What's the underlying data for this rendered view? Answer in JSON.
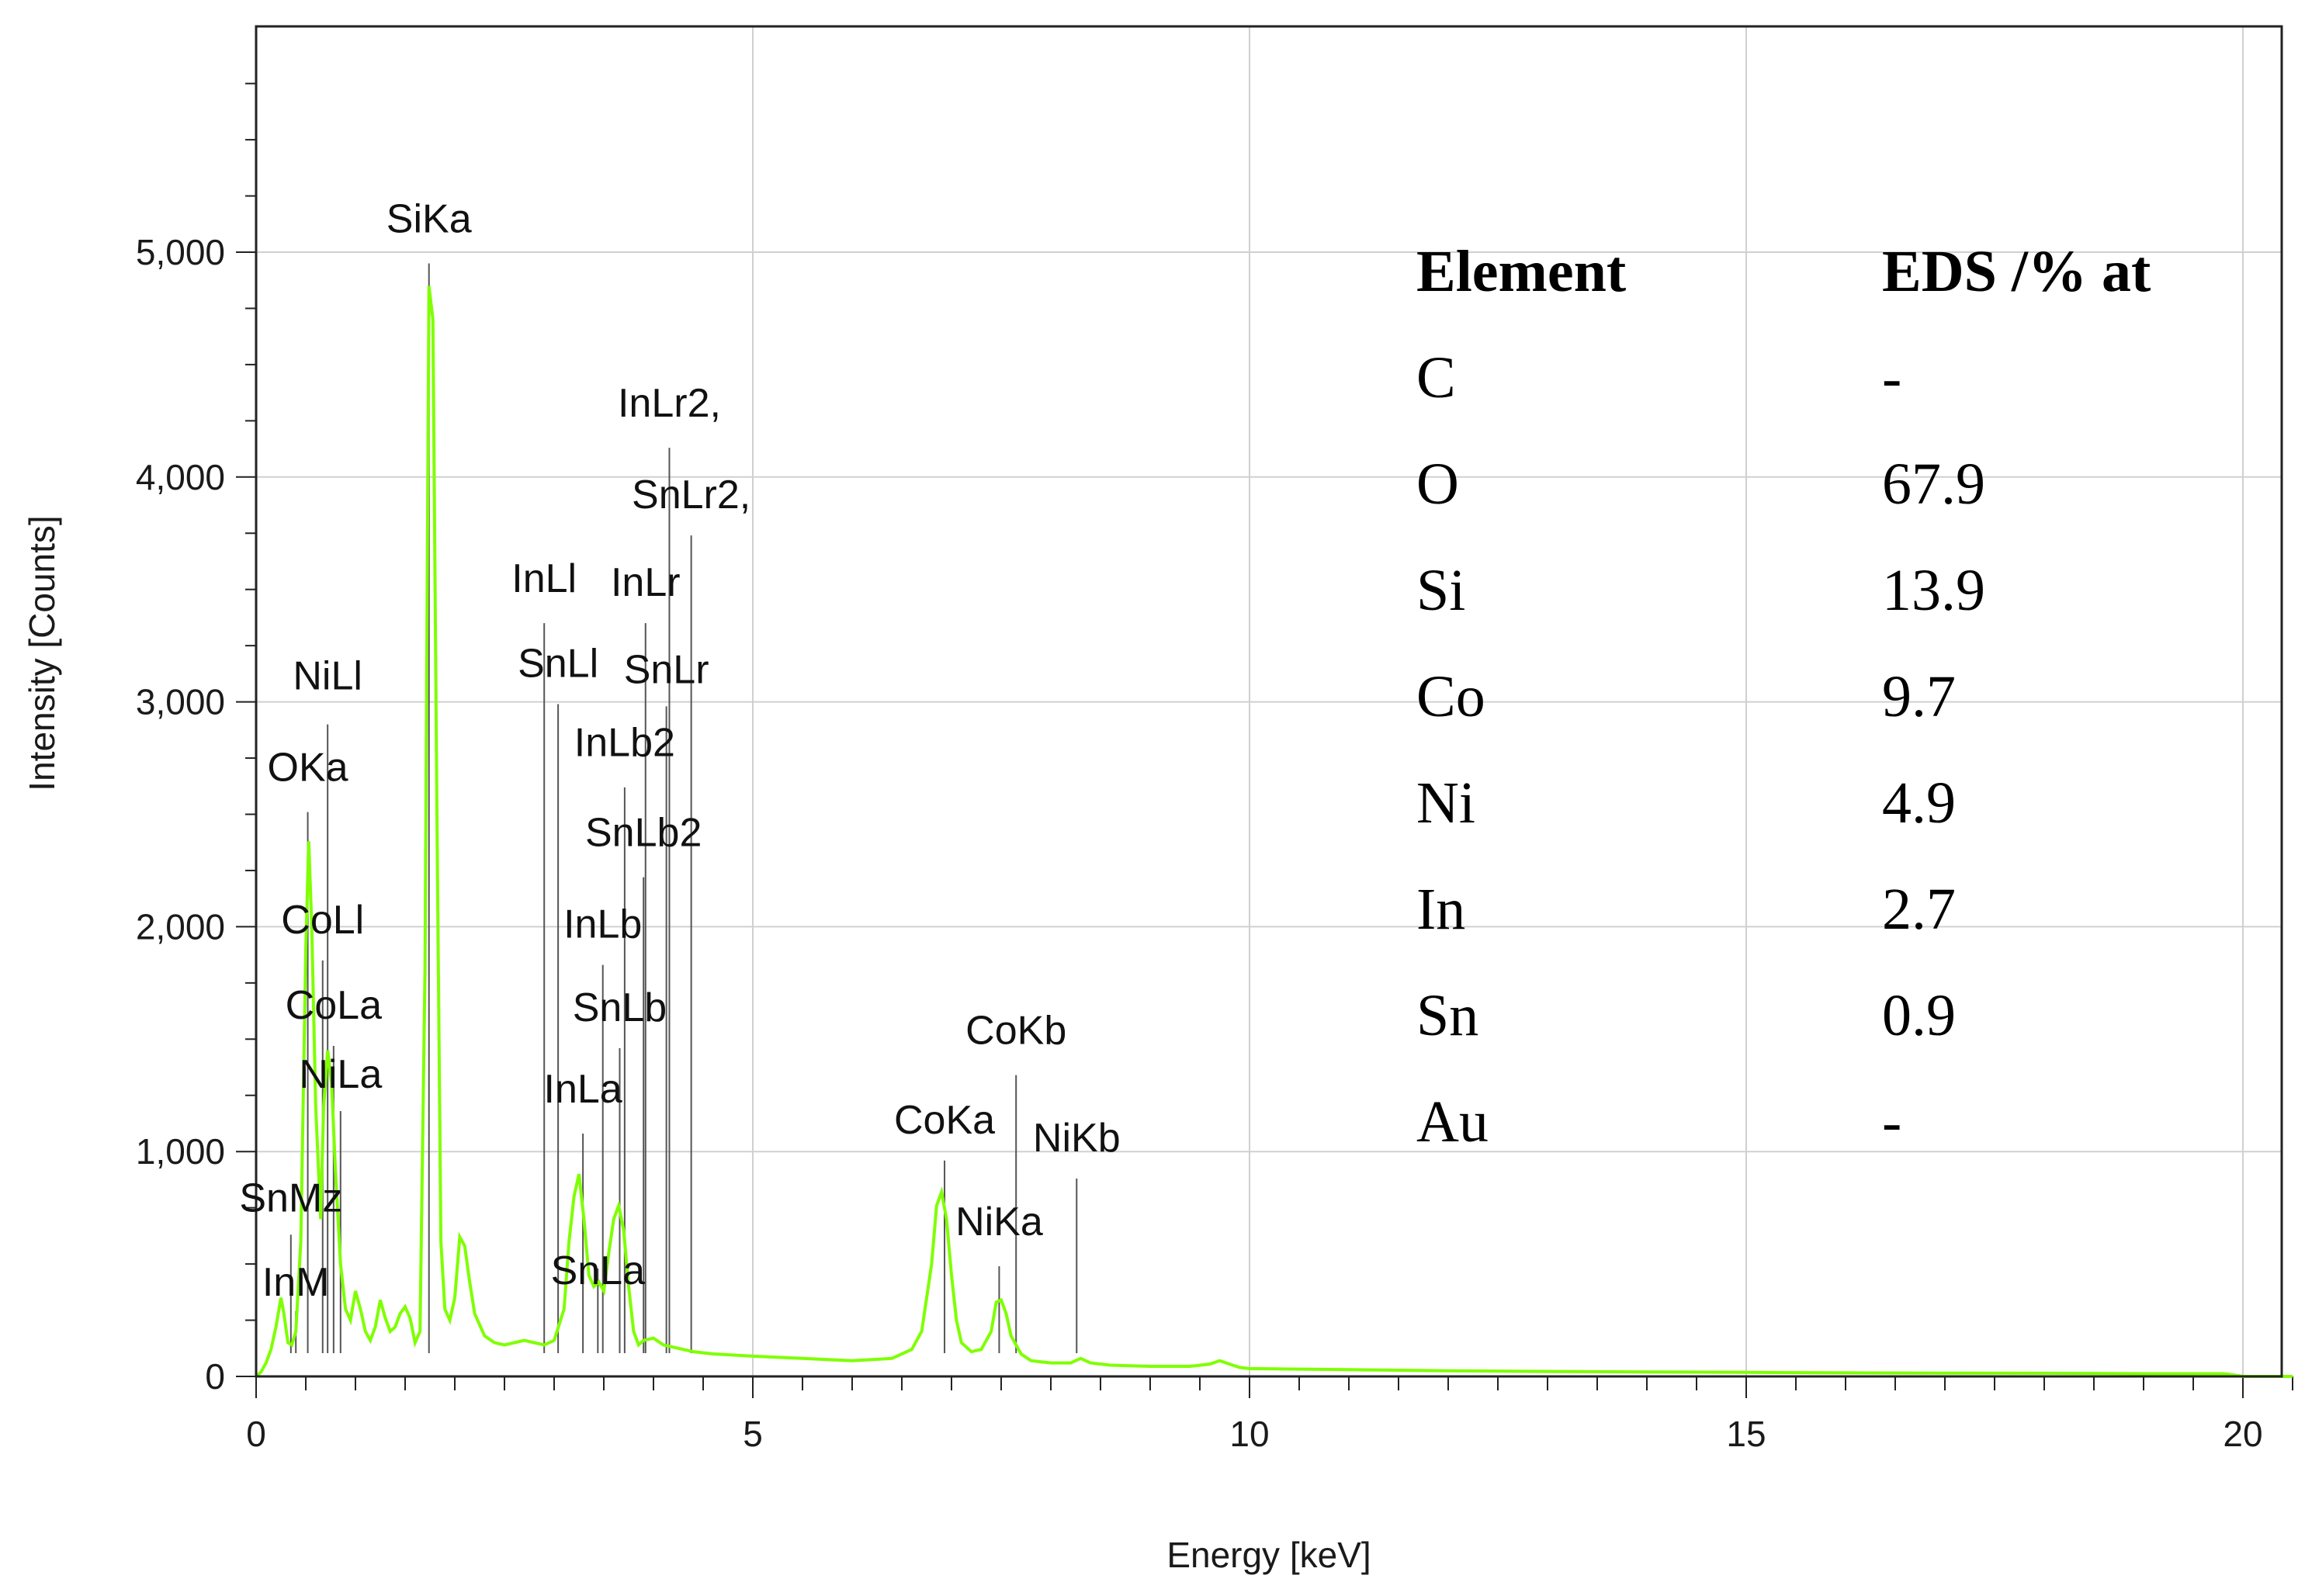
{
  "chart_data": {
    "type": "line",
    "title": "",
    "xlabel": "Energy [keV]",
    "ylabel": "Intensity [Counts]",
    "xlim": [
      0,
      20.5
    ],
    "ylim": [
      0,
      5800
    ],
    "grid": true,
    "line_color": "#7fff00",
    "grid_color": "#d0d0d0",
    "x_ticks": [
      0,
      5,
      10,
      15,
      20
    ],
    "x_tick_labels": [
      "0",
      "5",
      "10",
      "15",
      "20"
    ],
    "y_ticks": [
      0,
      1000,
      2000,
      3000,
      4000,
      5000
    ],
    "y_tick_labels": [
      "0",
      "1,000",
      "2,000",
      "3,000",
      "4,000",
      "5,000"
    ],
    "series": [
      {
        "x": [
          0.0,
          0.05,
          0.1,
          0.15,
          0.2,
          0.25,
          0.28,
          0.32,
          0.36,
          0.4,
          0.45,
          0.5,
          0.53,
          0.56,
          0.6,
          0.65,
          0.68,
          0.72,
          0.76,
          0.8,
          0.85,
          0.9,
          0.95,
          1.0,
          1.05,
          1.1,
          1.15,
          1.2,
          1.25,
          1.3,
          1.35,
          1.4,
          1.45,
          1.5,
          1.55,
          1.6,
          1.65,
          1.7,
          1.74,
          1.78,
          1.82,
          1.86,
          1.9,
          1.95,
          2.0,
          2.05,
          2.1,
          2.15,
          2.2,
          2.3,
          2.4,
          2.5,
          2.6,
          2.7,
          2.8,
          2.9,
          3.0,
          3.1,
          3.15,
          3.2,
          3.25,
          3.3,
          3.35,
          3.4,
          3.45,
          3.5,
          3.55,
          3.6,
          3.65,
          3.7,
          3.75,
          3.8,
          3.85,
          3.9,
          4.0,
          4.1,
          4.2,
          4.4,
          4.6,
          5.0,
          5.5,
          6.0,
          6.4,
          6.6,
          6.7,
          6.8,
          6.85,
          6.9,
          6.95,
          7.0,
          7.05,
          7.1,
          7.2,
          7.3,
          7.4,
          7.45,
          7.5,
          7.55,
          7.6,
          7.7,
          7.8,
          8.0,
          8.2,
          8.3,
          8.4,
          8.6,
          9.0,
          9.4,
          9.6,
          9.7,
          9.8,
          9.9,
          10.0,
          11.0,
          12.0,
          13.0,
          14.0,
          15.0,
          16.0,
          17.0,
          18.0,
          19.0,
          19.5,
          19.8,
          19.85,
          20.0,
          20.5
        ],
        "y": [
          0,
          20,
          60,
          120,
          220,
          350,
          280,
          150,
          140,
          200,
          600,
          1900,
          2380,
          2000,
          1200,
          700,
          1200,
          1450,
          1300,
          900,
          500,
          300,
          250,
          380,
          300,
          200,
          160,
          220,
          340,
          260,
          200,
          220,
          280,
          310,
          260,
          150,
          200,
          1800,
          4850,
          4700,
          2500,
          600,
          300,
          250,
          350,
          620,
          580,
          420,
          280,
          180,
          150,
          140,
          150,
          160,
          150,
          140,
          160,
          300,
          600,
          800,
          900,
          700,
          450,
          400,
          420,
          380,
          550,
          700,
          760,
          650,
          400,
          200,
          140,
          160,
          170,
          140,
          130,
          110,
          100,
          90,
          80,
          70,
          80,
          120,
          200,
          500,
          760,
          820,
          700,
          450,
          250,
          150,
          110,
          120,
          200,
          330,
          340,
          280,
          180,
          100,
          70,
          60,
          60,
          80,
          60,
          50,
          45,
          45,
          55,
          70,
          55,
          40,
          35,
          30,
          25,
          22,
          20,
          18,
          16,
          15,
          14,
          12,
          12,
          12,
          10,
          0,
          0
        ]
      }
    ],
    "annotations": [
      {
        "text": "SiKa",
        "x": 1.74,
        "peak": 4950
      },
      {
        "text": "NiLl",
        "x": 0.72,
        "peak": 2900
      },
      {
        "text": "OKa",
        "x": 0.52,
        "peak": 2510
      },
      {
        "text": "CoLl",
        "x": 0.67,
        "peak": 1850
      },
      {
        "text": "CoLa",
        "x": 0.78,
        "peak": 1470
      },
      {
        "text": "NiLa",
        "x": 0.85,
        "peak": 1180
      },
      {
        "text": "SnMz",
        "x": 0.35,
        "peak": 630
      },
      {
        "text": "InM",
        "x": 0.4,
        "peak": 290
      },
      {
        "text": "InLl",
        "x": 2.9,
        "peak": 3350
      },
      {
        "text": "SnLl",
        "x": 3.04,
        "peak": 2990
      },
      {
        "text": "InLa",
        "x": 3.29,
        "peak": 1080
      },
      {
        "text": "SnLa",
        "x": 3.44,
        "peak": 480
      },
      {
        "text": "InLb",
        "x": 3.49,
        "peak": 1830
      },
      {
        "text": "SnLb",
        "x": 3.66,
        "peak": 1460
      },
      {
        "text": "InLb2",
        "x": 3.71,
        "peak": 2620
      },
      {
        "text": "SnLb2",
        "x": 3.9,
        "peak": 2220
      },
      {
        "text": "InLr",
        "x": 3.92,
        "peak": 3350
      },
      {
        "text": "SnLr",
        "x": 4.13,
        "peak": 2980
      },
      {
        "text": "InLr2,",
        "x": 4.16,
        "peak": 4130
      },
      {
        "text": "SnLr2,",
        "x": 4.38,
        "peak": 3740
      },
      {
        "text": "CoKa",
        "x": 6.93,
        "peak": 960
      },
      {
        "text": "NiKa",
        "x": 7.48,
        "peak": 490
      },
      {
        "text": "CoKb",
        "x": 7.65,
        "peak": 1340
      },
      {
        "text": "NiKb",
        "x": 8.26,
        "peak": 880
      }
    ]
  },
  "table": {
    "headers": [
      "Element",
      "EDS /% at"
    ],
    "rows": [
      [
        "C",
        "-"
      ],
      [
        "O",
        "67.9"
      ],
      [
        "Si",
        "13.9"
      ],
      [
        "Co",
        "9.7"
      ],
      [
        "Ni",
        "4.9"
      ],
      [
        "In",
        "2.7"
      ],
      [
        "Sn",
        "0.9"
      ],
      [
        "Au",
        "-"
      ]
    ]
  }
}
